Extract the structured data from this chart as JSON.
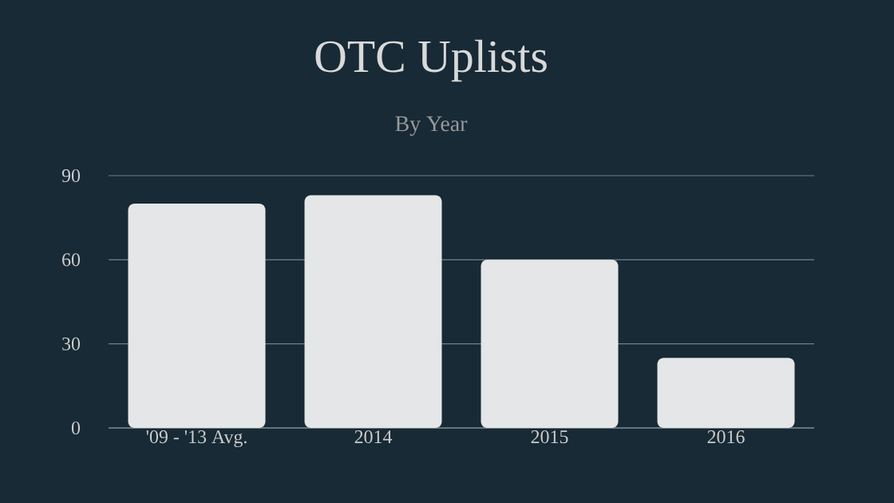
{
  "chart_data": {
    "type": "bar",
    "title": "OTC Uplists",
    "subtitle": "By Year",
    "categories": [
      "'09 - '13 Avg.",
      "2014",
      "2015",
      "2016"
    ],
    "values": [
      80,
      83,
      60,
      25
    ],
    "color": "#e4e6e7",
    "ylim": [
      0,
      90
    ],
    "yticks": [
      0,
      30,
      60,
      90
    ],
    "grid": "y"
  }
}
